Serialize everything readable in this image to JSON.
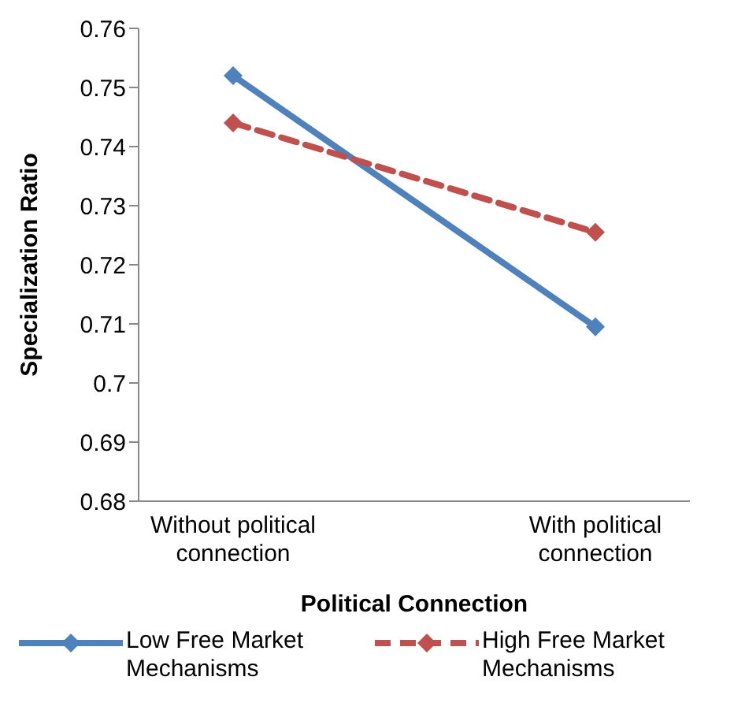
{
  "chart_data": {
    "type": "line",
    "xlabel": "Political Connection",
    "ylabel": "Specialization Ratio",
    "categories": [
      "Without political connection",
      "With political connection"
    ],
    "series": [
      {
        "name": "Low Free Market Mechanisms",
        "color": "#4f81bd",
        "values": [
          0.752,
          0.7095
        ]
      },
      {
        "name": "High Free Market Mechanisms",
        "color": "#c0504d",
        "values": [
          0.744,
          0.7255
        ],
        "line_style": "dashed"
      }
    ],
    "ylim": [
      0.68,
      0.76
    ],
    "yticks": [
      0.68,
      0.69,
      0.7,
      0.71,
      0.72,
      0.73,
      0.74,
      0.75,
      0.76
    ],
    "grid": false,
    "legend": "bottom",
    "marker": "diamond"
  }
}
